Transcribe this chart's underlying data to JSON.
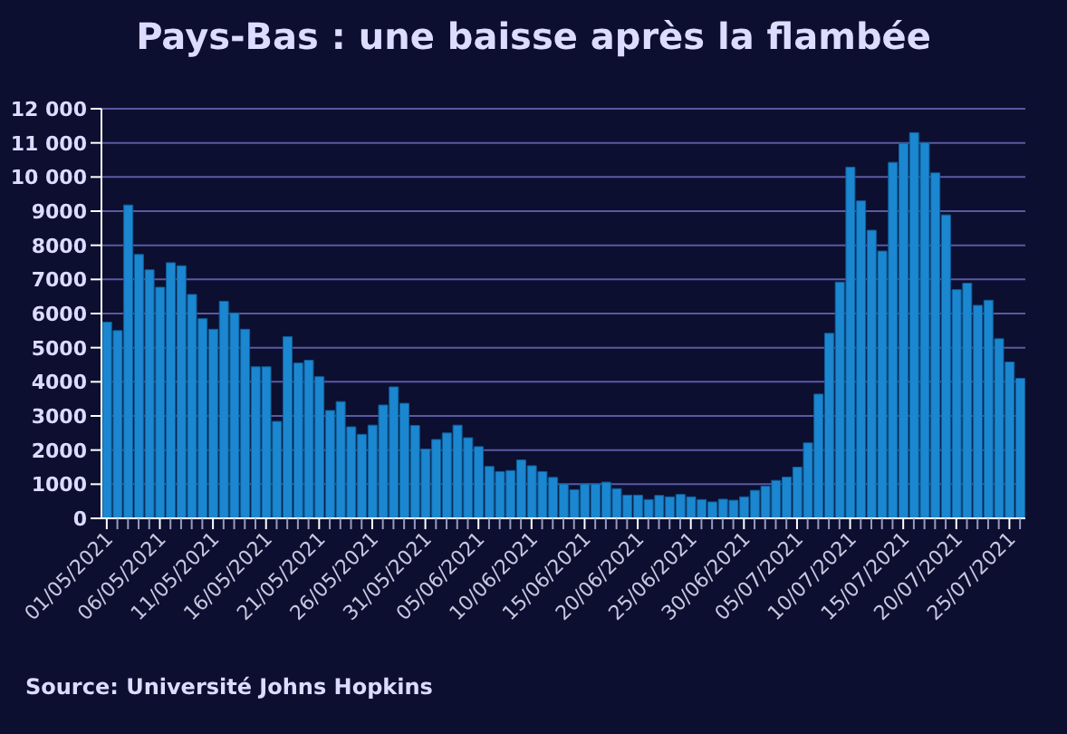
{
  "chart_data": {
    "type": "bar",
    "title": "Pays-Bas : une baisse après la flambée",
    "categories": [
      "01/05/2021",
      null,
      null,
      null,
      null,
      "06/05/2021",
      null,
      null,
      null,
      null,
      "11/05/2021",
      null,
      null,
      null,
      null,
      "16/05/2021",
      null,
      null,
      null,
      null,
      "21/05/2021",
      null,
      null,
      null,
      null,
      "26/05/2021",
      null,
      null,
      null,
      null,
      "31/05/2021",
      null,
      null,
      null,
      null,
      "05/06/2021",
      null,
      null,
      null,
      null,
      "10/06/2021",
      null,
      null,
      null,
      null,
      "15/06/2021",
      null,
      null,
      null,
      null,
      "20/06/2021",
      null,
      null,
      null,
      null,
      "25/06/2021",
      null,
      null,
      null,
      null,
      "30/06/2021",
      null,
      null,
      null,
      null,
      "05/07/2021",
      null,
      null,
      null,
      null,
      "10/07/2021",
      null,
      null,
      null,
      null,
      "15/07/2021",
      null,
      null,
      null,
      null,
      "20/07/2021",
      null,
      null,
      null,
      null,
      "25/07/2021",
      null
    ],
    "values": [
      5750,
      5500,
      9180,
      7730,
      7280,
      6770,
      7490,
      7400,
      6560,
      5850,
      5540,
      6360,
      6020,
      5540,
      4440,
      4440,
      2840,
      5320,
      4550,
      4630,
      4150,
      3160,
      3420,
      2680,
      2460,
      2730,
      3320,
      3850,
      3370,
      2720,
      2030,
      2310,
      2500,
      2730,
      2360,
      2100,
      1520,
      1370,
      1400,
      1710,
      1540,
      1370,
      1200,
      1010,
      840,
      1010,
      1010,
      1060,
      870,
      680,
      680,
      550,
      670,
      630,
      700,
      630,
      550,
      480,
      560,
      530,
      630,
      820,
      940,
      1110,
      1210,
      1500,
      2210,
      3640,
      5420,
      6920,
      10290,
      9300,
      8440,
      7830,
      10430,
      10990,
      11300,
      11010,
      10120,
      8890,
      6700,
      6890,
      6240,
      6390,
      5260,
      4580,
      4100
    ],
    "color": "#1b87d0",
    "ylim": [
      0,
      12000
    ],
    "yticks": [
      0,
      1000,
      2000,
      3000,
      4000,
      5000,
      6000,
      7000,
      8000,
      9000,
      {
        "value": 10000,
        "label": "10 000"
      },
      {
        "value": 11000,
        "label": "11 000"
      },
      {
        "value": 12000,
        "label": "12 000"
      }
    ],
    "grid": "y",
    "annotations": [
      "Source: Université Johns Hopkins"
    ]
  }
}
